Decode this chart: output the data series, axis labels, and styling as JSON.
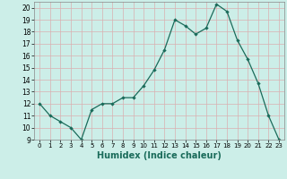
{
  "x": [
    0,
    1,
    2,
    3,
    4,
    5,
    6,
    7,
    8,
    9,
    10,
    11,
    12,
    13,
    14,
    15,
    16,
    17,
    18,
    19,
    20,
    21,
    22,
    23
  ],
  "y": [
    12,
    11,
    10.5,
    10,
    9,
    11.5,
    12,
    12,
    12.5,
    12.5,
    13.5,
    14.8,
    16.5,
    19,
    18.5,
    17.8,
    18.3,
    20.3,
    19.7,
    17.3,
    15.7,
    13.7,
    11,
    9
  ],
  "line_color": "#1a6b5a",
  "marker": "D",
  "marker_size": 2.2,
  "bg_color": "#cceee8",
  "grid_color": "#d9b0b0",
  "xlabel": "Humidex (Indice chaleur)",
  "xlabel_fontsize": 7,
  "xlim": [
    -0.5,
    23.5
  ],
  "ylim": [
    9,
    20.5
  ],
  "yticks": [
    9,
    10,
    11,
    12,
    13,
    14,
    15,
    16,
    17,
    18,
    19,
    20
  ],
  "xticks": [
    0,
    1,
    2,
    3,
    4,
    5,
    6,
    7,
    8,
    9,
    10,
    11,
    12,
    13,
    14,
    15,
    16,
    17,
    18,
    19,
    20,
    21,
    22,
    23
  ]
}
